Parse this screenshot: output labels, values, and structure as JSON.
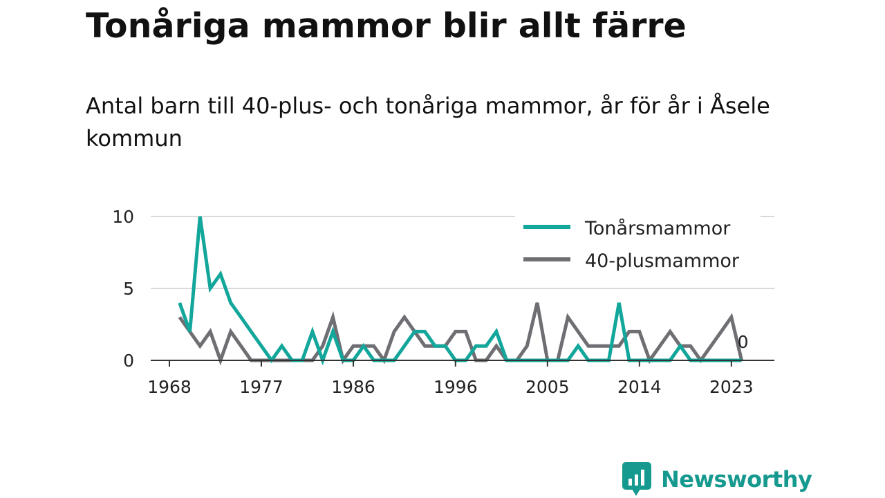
{
  "chart_data": {
    "type": "line",
    "title": "Tonåriga mammor blir allt färre",
    "subtitle": "Antal barn till 40-plus- och tonåriga mammor, år för år i Åsele kommun",
    "xlabel": "",
    "ylabel": "",
    "x": [
      1969,
      1970,
      1971,
      1972,
      1973,
      1974,
      1975,
      1976,
      1977,
      1978,
      1979,
      1980,
      1981,
      1982,
      1983,
      1984,
      1985,
      1986,
      1987,
      1988,
      1989,
      1990,
      1991,
      1992,
      1993,
      1994,
      1995,
      1996,
      1997,
      1998,
      1999,
      2000,
      2001,
      2002,
      2003,
      2004,
      2005,
      2006,
      2007,
      2008,
      2009,
      2010,
      2011,
      2012,
      2013,
      2014,
      2015,
      2016,
      2017,
      2018,
      2019,
      2020,
      2021,
      2022,
      2023,
      2024
    ],
    "xticks": [
      1968,
      1977,
      1986,
      1996,
      2005,
      2014,
      2023
    ],
    "xlim": [
      1968,
      2024.5
    ],
    "yticks": [
      0,
      5,
      10
    ],
    "ylim": [
      0,
      10
    ],
    "grid": true,
    "legend_position": "top-right",
    "series": [
      {
        "name": "Tonårsmammor",
        "color": "#13a69b",
        "values": [
          4,
          2,
          10,
          5,
          6,
          4,
          3,
          2,
          1,
          0,
          1,
          0,
          0,
          2,
          0,
          2,
          0,
          0,
          1,
          0,
          0,
          0,
          1,
          2,
          2,
          1,
          1,
          0,
          0,
          1,
          1,
          2,
          0,
          0,
          0,
          0,
          0,
          0,
          0,
          1,
          0,
          0,
          0,
          4,
          0,
          0,
          0,
          0,
          0,
          1,
          0,
          0,
          0,
          0,
          0,
          0
        ]
      },
      {
        "name": "40-plusmammor",
        "color": "#6e6e73",
        "values": [
          3,
          2,
          1,
          2,
          0,
          2,
          1,
          0,
          0,
          0,
          0,
          0,
          0,
          0,
          1,
          3,
          0,
          1,
          1,
          1,
          0,
          2,
          3,
          2,
          1,
          1,
          1,
          2,
          2,
          0,
          0,
          1,
          0,
          0,
          1,
          4,
          0,
          0,
          3,
          2,
          1,
          1,
          1,
          1,
          2,
          2,
          0,
          1,
          2,
          1,
          1,
          0,
          1,
          2,
          3,
          0
        ]
      }
    ],
    "annotations": [
      {
        "text": "0",
        "x": 2024,
        "y": 0
      }
    ]
  },
  "brand": {
    "name": "Newsworthy",
    "color": "#16998f"
  }
}
